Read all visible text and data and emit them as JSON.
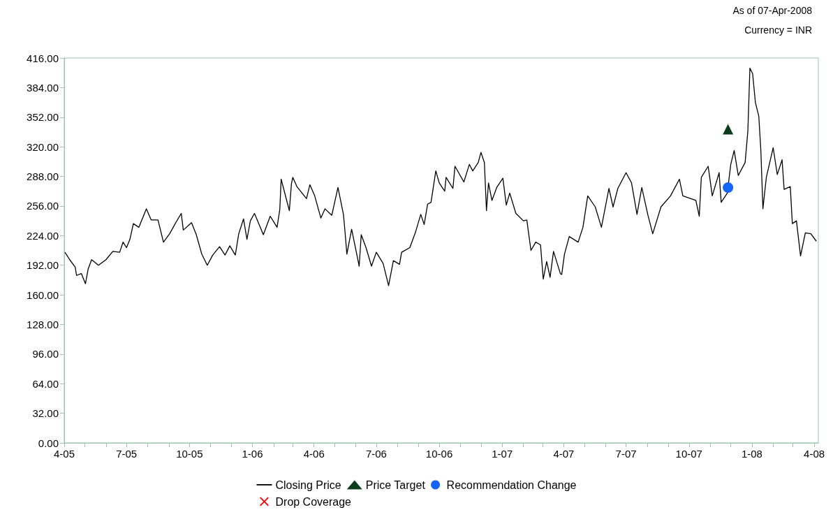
{
  "chart_data": {
    "type": "line",
    "annotations": [
      "As of 07-Apr-2008",
      "Currency = INR"
    ],
    "xlim": [
      "2005-04-01",
      "2008-04-07"
    ],
    "xticks": [
      {
        "value": "2005-04-01",
        "label": "4-05"
      },
      {
        "value": "2005-05-01",
        "label": null
      },
      {
        "value": "2005-06-01",
        "label": null
      },
      {
        "value": "2005-07-01",
        "label": "7-05"
      },
      {
        "value": "2005-08-01",
        "label": null
      },
      {
        "value": "2005-09-01",
        "label": null
      },
      {
        "value": "2005-10-01",
        "label": "10-05"
      },
      {
        "value": "2005-11-01",
        "label": null
      },
      {
        "value": "2005-12-01",
        "label": null
      },
      {
        "value": "2006-01-01",
        "label": "1-06"
      },
      {
        "value": "2006-02-01",
        "label": null
      },
      {
        "value": "2006-03-01",
        "label": null
      },
      {
        "value": "2006-04-01",
        "label": "4-06"
      },
      {
        "value": "2006-05-01",
        "label": null
      },
      {
        "value": "2006-06-01",
        "label": null
      },
      {
        "value": "2006-07-01",
        "label": "7-06"
      },
      {
        "value": "2006-08-01",
        "label": null
      },
      {
        "value": "2006-09-01",
        "label": null
      },
      {
        "value": "2006-10-01",
        "label": "10-06"
      },
      {
        "value": "2006-11-01",
        "label": null
      },
      {
        "value": "2006-12-01",
        "label": null
      },
      {
        "value": "2007-01-01",
        "label": "1-07"
      },
      {
        "value": "2007-02-01",
        "label": null
      },
      {
        "value": "2007-03-01",
        "label": null
      },
      {
        "value": "2007-04-01",
        "label": "4-07"
      },
      {
        "value": "2007-05-01",
        "label": null
      },
      {
        "value": "2007-06-01",
        "label": null
      },
      {
        "value": "2007-07-01",
        "label": "7-07"
      },
      {
        "value": "2007-08-01",
        "label": null
      },
      {
        "value": "2007-09-01",
        "label": null
      },
      {
        "value": "2007-10-01",
        "label": "10-07"
      },
      {
        "value": "2007-11-01",
        "label": null
      },
      {
        "value": "2007-12-01",
        "label": null
      },
      {
        "value": "2008-01-01",
        "label": "1-08"
      },
      {
        "value": "2008-02-01",
        "label": null
      },
      {
        "value": "2008-03-01",
        "label": null
      },
      {
        "value": "2008-04-01",
        "label": "4-08"
      }
    ],
    "ylim": [
      0,
      416
    ],
    "yticks": [
      {
        "value": 0,
        "label": "0.00"
      },
      {
        "value": 32,
        "label": "32.00"
      },
      {
        "value": 64,
        "label": "64.00"
      },
      {
        "value": 96,
        "label": "96.00"
      },
      {
        "value": 128,
        "label": "128.00"
      },
      {
        "value": 160,
        "label": "160.00"
      },
      {
        "value": 192,
        "label": "192.00"
      },
      {
        "value": 224,
        "label": "224.00"
      },
      {
        "value": 256,
        "label": "256.00"
      },
      {
        "value": 288,
        "label": "288.00"
      },
      {
        "value": 320,
        "label": "320.00"
      },
      {
        "value": 352,
        "label": "352.00"
      },
      {
        "value": 384,
        "label": "384.00"
      },
      {
        "value": 416,
        "label": "416.00"
      }
    ],
    "grid": false,
    "legend": "bottom",
    "series": [
      {
        "name": "Closing Price",
        "marker": "none",
        "line_style": "solid",
        "color": "#000000",
        "x": [
          "2005-04-02",
          "2005-04-09",
          "2005-04-17",
          "2005-04-19",
          "2005-04-26",
          "2005-05-02",
          "2005-05-06",
          "2005-05-11",
          "2005-05-21",
          "2005-06-01",
          "2005-06-11",
          "2005-06-21",
          "2005-06-26",
          "2005-07-01",
          "2005-07-06",
          "2005-07-11",
          "2005-07-19",
          "2005-07-30",
          "2005-08-06",
          "2005-08-16",
          "2005-08-24",
          "2005-09-02",
          "2005-09-11",
          "2005-09-19",
          "2005-09-22",
          "2005-10-04",
          "2005-10-11",
          "2005-10-19",
          "2005-10-27",
          "2005-11-04",
          "2005-11-14",
          "2005-11-22",
          "2005-11-29",
          "2005-12-07",
          "2005-12-12",
          "2005-12-19",
          "2005-12-24",
          "2005-12-29",
          "2006-01-04",
          "2006-01-17",
          "2006-01-27",
          "2006-02-06",
          "2006-02-10",
          "2006-02-12",
          "2006-02-19",
          "2006-02-24",
          "2006-02-27",
          "2006-03-01",
          "2006-03-07",
          "2006-03-21",
          "2006-03-26",
          "2006-04-02",
          "2006-04-11",
          "2006-04-17",
          "2006-04-27",
          "2006-05-06",
          "2006-05-14",
          "2006-05-16",
          "2006-05-19",
          "2006-05-26",
          "2006-06-06",
          "2006-06-09",
          "2006-06-16",
          "2006-06-24",
          "2006-07-01",
          "2006-07-11",
          "2006-07-19",
          "2006-07-26",
          "2006-08-04",
          "2006-08-07",
          "2006-08-19",
          "2006-08-27",
          "2006-09-04",
          "2006-09-09",
          "2006-09-14",
          "2006-09-19",
          "2006-09-26",
          "2006-10-01",
          "2006-10-09",
          "2006-10-11",
          "2006-10-21",
          "2006-10-24",
          "2006-11-06",
          "2006-11-14",
          "2006-11-19",
          "2006-11-27",
          "2006-12-01",
          "2006-12-06",
          "2006-12-09",
          "2006-12-12",
          "2006-12-17",
          "2006-12-24",
          "2007-01-02",
          "2007-01-07",
          "2007-01-12",
          "2007-01-21",
          "2007-02-01",
          "2007-02-06",
          "2007-02-12",
          "2007-02-19",
          "2007-02-26",
          "2007-03-02",
          "2007-03-07",
          "2007-03-12",
          "2007-03-17",
          "2007-03-27",
          "2007-03-29",
          "2007-04-02",
          "2007-04-09",
          "2007-04-22",
          "2007-04-29",
          "2007-05-06",
          "2007-05-17",
          "2007-05-26",
          "2007-06-06",
          "2007-06-12",
          "2007-06-19",
          "2007-07-01",
          "2007-07-09",
          "2007-07-17",
          "2007-07-24",
          "2007-08-02",
          "2007-08-09",
          "2007-08-21",
          "2007-09-04",
          "2007-09-17",
          "2007-09-22",
          "2007-10-11",
          "2007-10-16",
          "2007-10-19",
          "2007-10-29",
          "2007-11-04",
          "2007-11-14",
          "2007-11-17",
          "2007-11-26",
          "2007-12-01",
          "2007-12-06",
          "2007-12-12",
          "2007-12-22",
          "2007-12-26",
          "2007-12-29",
          "2008-01-02",
          "2008-01-06",
          "2008-01-11",
          "2008-01-14",
          "2008-01-17",
          "2008-01-22",
          "2008-02-01",
          "2008-02-07",
          "2008-02-14",
          "2008-02-17",
          "2008-02-26",
          "2008-02-29",
          "2008-03-06",
          "2008-03-12",
          "2008-03-19",
          "2008-03-27",
          "2008-04-04"
        ],
        "values": [
          206,
          198,
          190,
          181,
          183,
          172,
          188,
          198,
          192,
          198,
          207,
          206,
          217,
          211,
          220,
          237,
          233,
          253,
          241,
          241,
          217,
          226,
          238,
          248,
          230,
          238,
          225,
          204,
          192,
          203,
          212,
          203,
          213,
          203,
          226,
          242,
          220,
          240,
          248,
          225,
          245,
          233,
          252,
          285,
          265,
          251,
          280,
          287,
          277,
          264,
          279,
          267,
          243,
          253,
          246,
          276,
          247,
          231,
          204,
          231,
          191,
          225,
          211,
          191,
          206,
          194,
          170,
          197,
          193,
          206,
          211,
          227,
          247,
          236,
          258,
          260,
          294,
          281,
          272,
          287,
          275,
          299,
          282,
          301,
          294,
          303,
          314,
          303,
          251,
          281,
          262,
          276,
          286,
          257,
          270,
          248,
          240,
          241,
          208,
          217,
          214,
          177,
          196,
          179,
          207,
          183,
          182,
          204,
          223,
          217,
          233,
          267,
          255,
          233,
          275,
          255,
          275,
          292,
          281,
          247,
          276,
          246,
          226,
          255,
          267,
          285,
          267,
          262,
          245,
          287,
          299,
          267,
          292,
          260,
          270,
          301,
          316,
          289,
          303,
          337,
          405,
          399,
          368,
          353,
          316,
          253,
          287,
          319,
          290,
          306,
          274,
          277,
          237,
          240,
          202,
          227,
          226,
          218
        ]
      },
      {
        "name": "Price Target",
        "type": "scatter",
        "marker": "triangle",
        "color": "#0b3d1c",
        "x": [
          "2007-11-27"
        ],
        "values": [
          339
        ]
      },
      {
        "name": "Recommendation Change",
        "type": "scatter",
        "marker": "circle",
        "color": "#1464f6",
        "x": [
          "2007-11-27"
        ],
        "values": [
          276
        ]
      },
      {
        "name": "Drop Coverage",
        "type": "scatter",
        "marker": "cross",
        "color": "#ff0000"
      }
    ]
  }
}
